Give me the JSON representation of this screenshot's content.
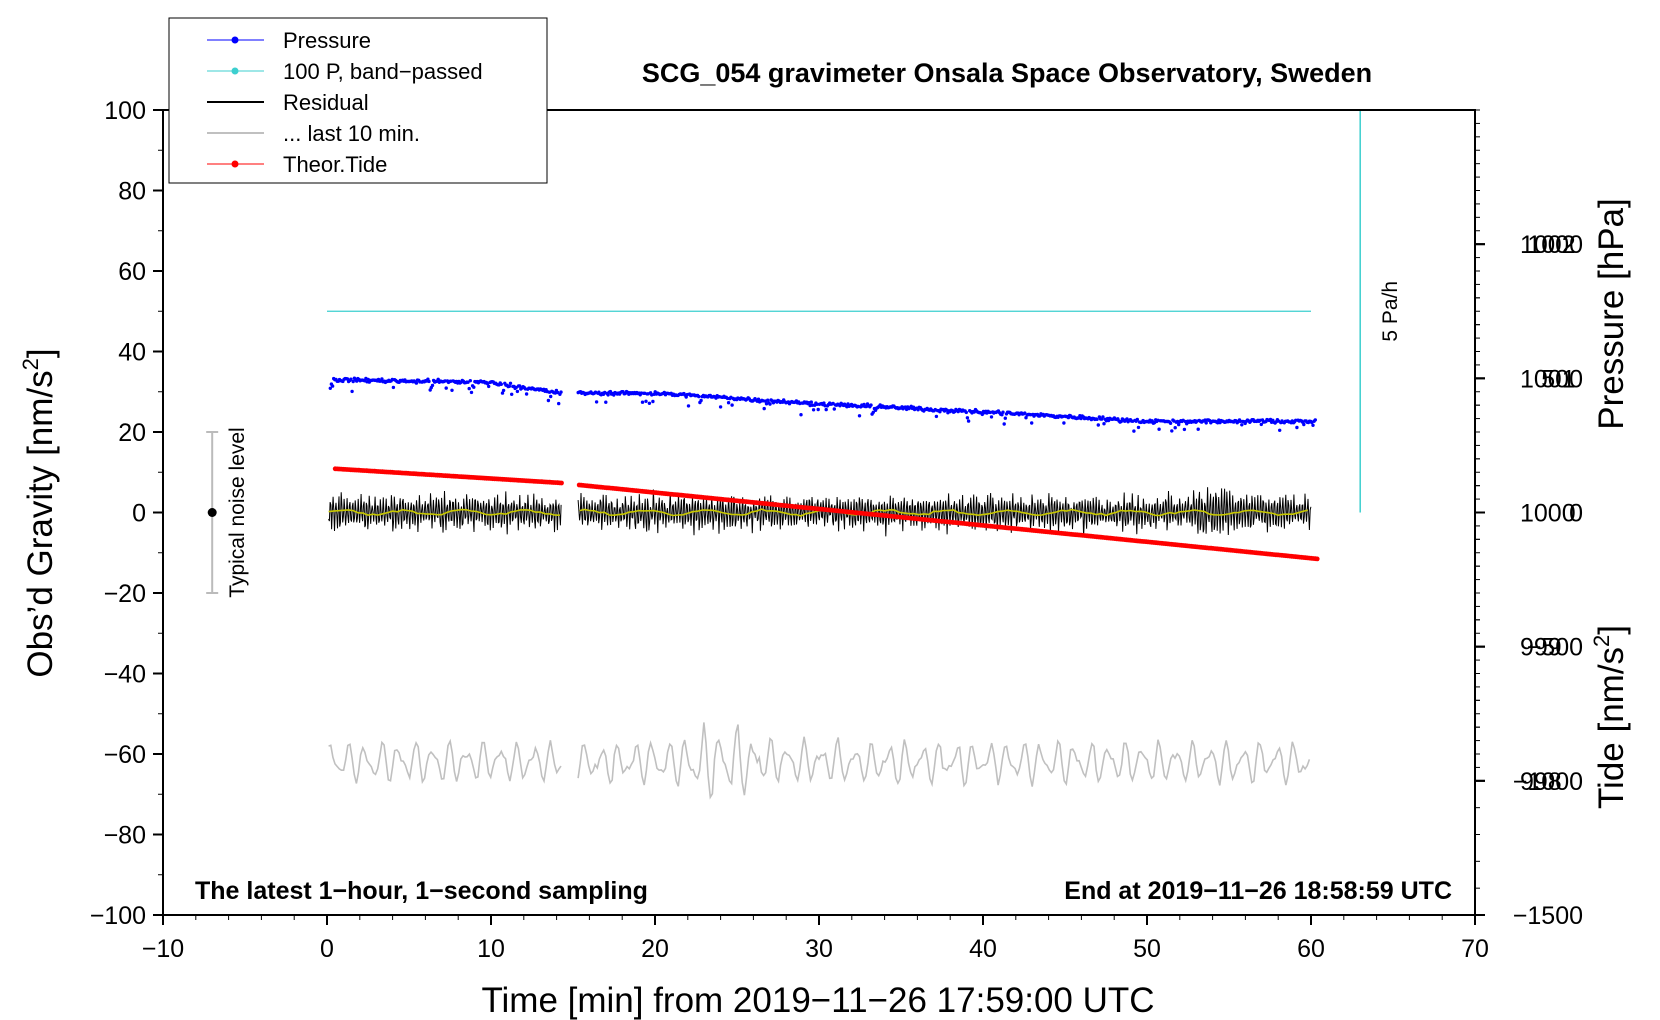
{
  "chart_data": {
    "type": "line",
    "title": "SCG_054 gravimeter Onsala Space Observatory, Sweden",
    "xlabel": "Time [min] from 2019−11−26 17:59:00 UTC",
    "ylabel_left_main": "Obs’d Gravity [nm/s",
    "ylabel_left_sup": "2",
    "ylabel_left_end": "]",
    "ylabel_right_top": "Pressure [hPa]",
    "ylabel_right_bottom_main": "Tide [nm/s",
    "ylabel_right_bottom_sup": "2",
    "ylabel_right_bottom_end": "]",
    "annotation_left": "The latest 1−hour, 1−second sampling",
    "annotation_right": "End at 2019−11−26 18:58:59 UTC",
    "noise_label": "Typical noise level",
    "scale_label": "5 Pa/h",
    "xlim": [
      -10,
      70
    ],
    "ylim": [
      -100,
      100
    ],
    "pressure_lim": [
      997,
      1003
    ],
    "tide_lim": [
      -1500,
      1500
    ],
    "x_ticks": [
      "−10",
      "0",
      "10",
      "20",
      "30",
      "40",
      "50",
      "60",
      "70"
    ],
    "x_tick_values": [
      -10,
      0,
      10,
      20,
      30,
      40,
      50,
      60,
      70
    ],
    "y_ticks": [
      "100",
      "80",
      "60",
      "40",
      "20",
      "0",
      "−20",
      "−40",
      "−60",
      "−80",
      "−100"
    ],
    "y_tick_values": [
      100,
      80,
      60,
      40,
      20,
      0,
      -20,
      -40,
      -60,
      -80,
      -100
    ],
    "pressure_ticks": [
      "1002",
      "1001",
      "1000",
      "999",
      "998"
    ],
    "pressure_tick_values": [
      1002,
      1001,
      1000,
      999,
      998
    ],
    "tide_ticks": [
      "1000",
      "500",
      "0",
      "−500",
      "−1000",
      "−1500"
    ],
    "tide_tick_values": [
      1000,
      500,
      0,
      -500,
      -1000,
      -1500
    ],
    "noise_bar": {
      "x": -7,
      "y_low": -20,
      "y_high": 20
    },
    "scale_bar": {
      "x": 63,
      "y_low": 0,
      "y_high": 100
    },
    "gap": [
      14.3,
      15.3
    ],
    "x_start": 0.1,
    "x_end": 60,
    "tide_end": 60.4,
    "series": [
      {
        "name": "Pressure",
        "color": "#0000ff",
        "marker": "dot",
        "x": [
          0.2,
          10,
          14.3,
          15.3,
          20,
          30,
          40,
          50,
          60.3
        ],
        "y": [
          1000.99,
          1000.97,
          1000.89,
          1000.89,
          1000.89,
          1000.81,
          1000.75,
          1000.68,
          1000.68
        ]
      },
      {
        "name": "100 P, band−passed",
        "color": "#3ccfcf",
        "marker": "dot",
        "x": [
          0,
          60
        ],
        "y": [
          50,
          50
        ]
      },
      {
        "name": "Residual",
        "color": "#000000",
        "marker": "line",
        "amplitude": 6,
        "x": [
          0,
          60
        ],
        "y": [
          0,
          0
        ]
      },
      {
        "name": "... last 10 min.",
        "color": "#c0c0c0",
        "marker": "line",
        "amplitude": 5,
        "x": [
          0,
          60
        ],
        "y": [
          -62,
          -62
        ]
      },
      {
        "name": "Theor.Tide",
        "color": "#ff0000",
        "marker": "dot",
        "x": [
          0.5,
          14.3,
          15.3,
          60.4
        ],
        "y": [
          163,
          110,
          103,
          -173
        ]
      }
    ],
    "smoothed_residual_color": "#c8c800",
    "grid": false,
    "legend_position": "top-left"
  }
}
